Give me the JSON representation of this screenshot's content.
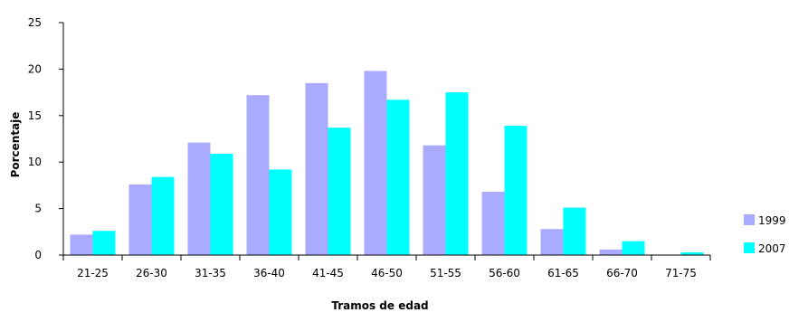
{
  "chart_data": {
    "type": "bar",
    "title": "",
    "xlabel": "Tramos de edad",
    "ylabel": "Porcentaje",
    "ylim": [
      0,
      25
    ],
    "yticks": [
      0,
      5,
      10,
      15,
      20,
      25
    ],
    "grid": false,
    "legend_position": "right",
    "categories": [
      "21-25",
      "26-30",
      "31-35",
      "36-40",
      "41-45",
      "46-50",
      "51-55",
      "56-60",
      "61-65",
      "66-70",
      "71-75"
    ],
    "series": [
      {
        "name": "1999",
        "color": "#aaaaff",
        "values": [
          2.2,
          7.6,
          12.1,
          17.2,
          18.5,
          19.8,
          11.8,
          6.8,
          2.8,
          0.6,
          0.0
        ]
      },
      {
        "name": "2007",
        "color": "#00ffff",
        "values": [
          2.6,
          8.4,
          10.9,
          9.2,
          13.7,
          16.7,
          17.5,
          13.9,
          5.1,
          1.5,
          0.3
        ]
      }
    ]
  }
}
